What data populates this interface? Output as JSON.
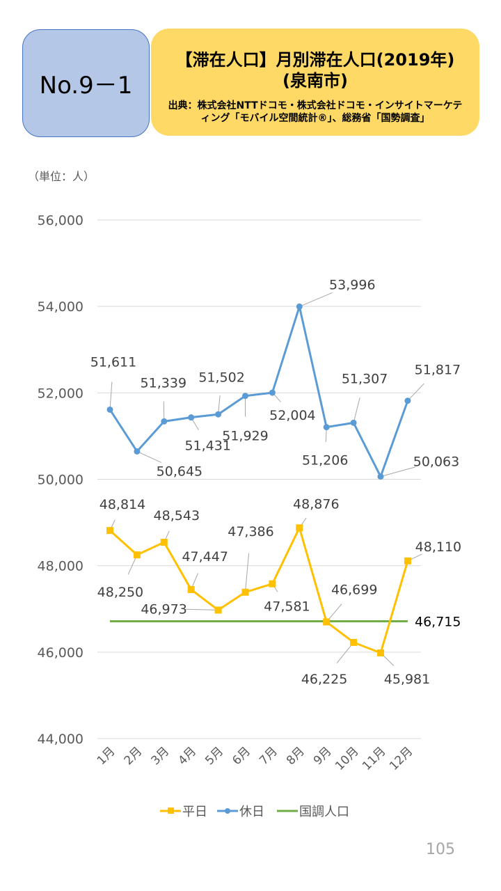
{
  "header": {
    "number": "No.9－1",
    "title_line1": "【滞在人口】月別滞在人口(2019年)",
    "title_line2": "(泉南市)",
    "source": "出典：株式会社NTTドコモ・株式会社ドコモ・インサイトマーケティング「モバイル空間統計®」、総務省「国勢調査」"
  },
  "unit_label": "（単位：人）",
  "page_number": "105",
  "chart_data": {
    "type": "line",
    "categories": [
      "1月",
      "2月",
      "3月",
      "4月",
      "5月",
      "6月",
      "7月",
      "8月",
      "9月",
      "10月",
      "11月",
      "12月"
    ],
    "ylim": [
      44000,
      56000
    ],
    "yticks": [
      44000,
      46000,
      48000,
      50000,
      52000,
      54000,
      56000
    ],
    "ytick_labels": [
      "44,000",
      "46,000",
      "48,000",
      "50,000",
      "52,000",
      "54,000",
      "56,000"
    ],
    "grid": true,
    "legend_position": "bottom",
    "series": [
      {
        "name": "平日",
        "color": "#ffc000",
        "marker": "square",
        "values": [
          48814,
          48250,
          48543,
          47447,
          46973,
          47386,
          47581,
          48876,
          46699,
          46225,
          45981,
          48110
        ],
        "labels": [
          "48,814",
          "48,250",
          "48,543",
          "47,447",
          "46,973",
          "47,386",
          "47,581",
          "48,876",
          "46,699",
          "46,225",
          "45,981",
          "48,110"
        ]
      },
      {
        "name": "休日",
        "color": "#5b9bd5",
        "marker": "circle",
        "values": [
          51611,
          50645,
          51339,
          51431,
          51502,
          51929,
          52004,
          53996,
          51206,
          51307,
          50063,
          51817
        ],
        "labels": [
          "51,611",
          "50,645",
          "51,339",
          "51,431",
          "51,502",
          "51,929",
          "52,004",
          "53,996",
          "51,206",
          "51,307",
          "50,063",
          "51,817"
        ]
      },
      {
        "name": "国調人口",
        "color": "#70ad47",
        "marker": "none",
        "values": [
          46715,
          46715,
          46715,
          46715,
          46715,
          46715,
          46715,
          46715,
          46715,
          46715,
          46715,
          46715
        ],
        "labels": [
          "46,715"
        ]
      }
    ]
  }
}
